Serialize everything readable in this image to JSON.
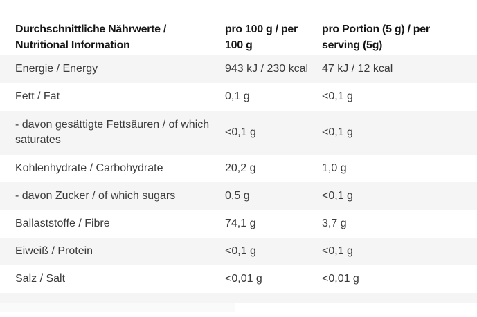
{
  "table": {
    "header": {
      "nutrient_col": "Durchschnittliche Nährwerte / Nutritional Information",
      "per_100g_col": "pro 100 g / per 100 g",
      "per_serving_col": "pro Portion (5 g) / per serving (5g)"
    },
    "rows": [
      {
        "label": "Energie / Energy",
        "per_100g": "943 kJ / 230 kcal",
        "per_serving": "47 kJ / 12 kcal"
      },
      {
        "label": "Fett / Fat",
        "per_100g": "0,1 g",
        "per_serving": "<0,1 g"
      },
      {
        "label": "- davon gesättigte Fettsäuren / of which saturates",
        "per_100g": "<0,1 g",
        "per_serving": "<0,1 g"
      },
      {
        "label": "Kohlenhydrate / Carbohydrate",
        "per_100g": "20,2 g",
        "per_serving": "1,0 g"
      },
      {
        "label": "- davon Zucker / of which sugars",
        "per_100g": "0,5 g",
        "per_serving": "<0,1 g"
      },
      {
        "label": "Ballaststoffe / Fibre",
        "per_100g": "74,1 g",
        "per_serving": "3,7 g"
      },
      {
        "label": "Eiweiß / Protein",
        "per_100g": "<0,1 g",
        "per_serving": "<0,1 g"
      },
      {
        "label": "Salz / Salt",
        "per_100g": "<0,01 g",
        "per_serving": "<0,01 g"
      }
    ],
    "colors": {
      "page_background": "#ffffff",
      "stripe_background": "#f5f5f5",
      "header_text": "#161616",
      "body_text": "#3b3b3b"
    }
  }
}
